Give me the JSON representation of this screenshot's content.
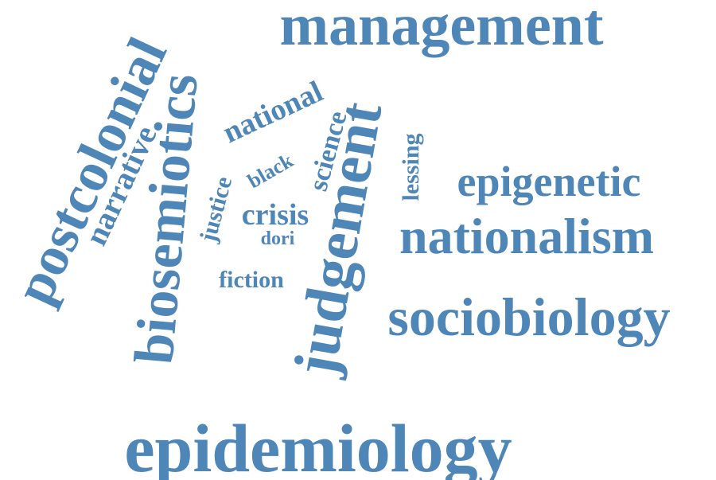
{
  "cloud": {
    "accent_color": "#4f86b8",
    "words": {
      "management": "management",
      "epidemiology": "epidemiology",
      "sociobiology": "sociobiology",
      "nationalism": "nationalism",
      "epigenetic": "epigenetic",
      "postcolonial": "postcolonial",
      "biosemiotics": "biosemiotics",
      "judgement": "judgement",
      "narrative": "narrative",
      "national": "national",
      "justice": "justice",
      "black": "black",
      "science": "science",
      "lessing": "lessing",
      "crisis": "crisis",
      "dori": "dori",
      "fiction": "fiction"
    }
  }
}
